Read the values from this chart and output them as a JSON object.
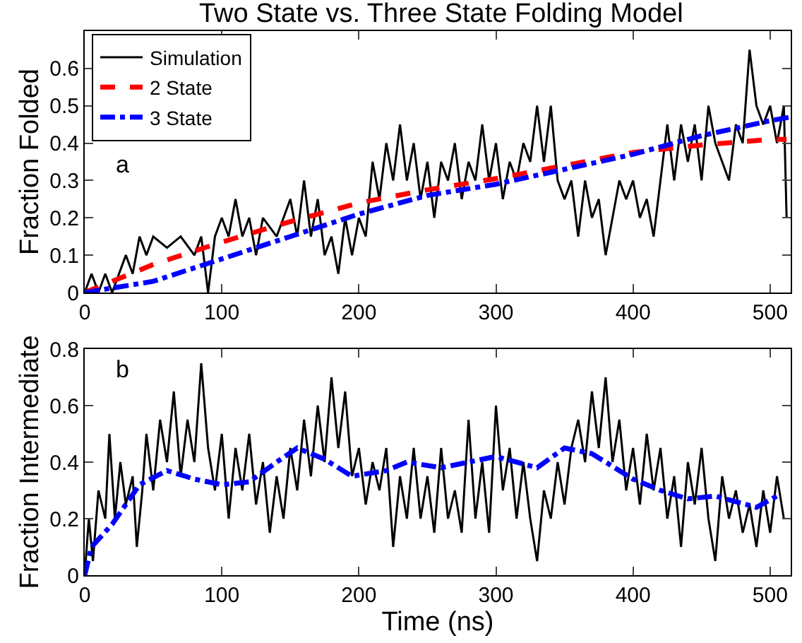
{
  "chart_data": [
    {
      "type": "line",
      "title": "Two State vs. Three State Folding Model",
      "ylabel": "Fraction Folded",
      "annotations": [
        "a"
      ],
      "legend": "top left",
      "grid": false,
      "xlim": [
        0,
        515
      ],
      "xticks": [
        0,
        100,
        200,
        300,
        400,
        500
      ],
      "ylim": [
        0,
        0.7
      ],
      "yticks": [
        0,
        0.1,
        0.2,
        0.3,
        0.4,
        0.5,
        0.6
      ],
      "series": [
        {
          "name": "Simulation",
          "color": "#000000",
          "line_style": "solid",
          "x": [
            0,
            5,
            10,
            15,
            20,
            25,
            30,
            35,
            40,
            45,
            50,
            60,
            70,
            80,
            85,
            90,
            95,
            100,
            105,
            110,
            115,
            120,
            125,
            130,
            140,
            150,
            155,
            160,
            165,
            170,
            175,
            180,
            185,
            190,
            195,
            200,
            205,
            210,
            215,
            220,
            225,
            230,
            235,
            240,
            245,
            250,
            255,
            260,
            265,
            270,
            275,
            280,
            285,
            290,
            295,
            300,
            305,
            310,
            315,
            320,
            325,
            330,
            335,
            340,
            345,
            350,
            355,
            360,
            365,
            370,
            375,
            380,
            385,
            390,
            395,
            400,
            405,
            410,
            415,
            420,
            425,
            430,
            435,
            440,
            445,
            450,
            455,
            460,
            465,
            470,
            475,
            480,
            485,
            490,
            495,
            500,
            505,
            510,
            512
          ],
          "values": [
            0,
            0.05,
            0,
            0.05,
            0,
            0.05,
            0.1,
            0.05,
            0.15,
            0.1,
            0.15,
            0.12,
            0.15,
            0.1,
            0.15,
            0,
            0.15,
            0.2,
            0.15,
            0.25,
            0.15,
            0.2,
            0.1,
            0.2,
            0.15,
            0.25,
            0.15,
            0.3,
            0.15,
            0.25,
            0.1,
            0.15,
            0.05,
            0.2,
            0.1,
            0.2,
            0.15,
            0.35,
            0.25,
            0.4,
            0.3,
            0.45,
            0.3,
            0.4,
            0.25,
            0.35,
            0.2,
            0.35,
            0.3,
            0.4,
            0.25,
            0.35,
            0.3,
            0.45,
            0.3,
            0.4,
            0.25,
            0.35,
            0.3,
            0.4,
            0.35,
            0.5,
            0.35,
            0.5,
            0.3,
            0.25,
            0.3,
            0.15,
            0.3,
            0.2,
            0.25,
            0.1,
            0.2,
            0.3,
            0.25,
            0.3,
            0.2,
            0.25,
            0.15,
            0.3,
            0.45,
            0.3,
            0.45,
            0.35,
            0.45,
            0.3,
            0.5,
            0.4,
            0.35,
            0.3,
            0.45,
            0.4,
            0.65,
            0.5,
            0.45,
            0.5,
            0.4,
            0.5,
            0.2
          ]
        },
        {
          "name": "2 State",
          "color": "#ff0000",
          "line_style": "dashed",
          "x": [
            0,
            50,
            100,
            150,
            200,
            250,
            300,
            350,
            400,
            450,
            500,
            512
          ],
          "values": [
            0,
            0.075,
            0.135,
            0.19,
            0.24,
            0.275,
            0.305,
            0.34,
            0.375,
            0.395,
            0.41,
            0.41
          ]
        },
        {
          "name": "3 State",
          "color": "#0000ff",
          "line_style": "dashdot",
          "x": [
            0,
            50,
            100,
            150,
            200,
            250,
            300,
            350,
            400,
            450,
            500,
            515
          ],
          "values": [
            0,
            0.03,
            0.09,
            0.15,
            0.21,
            0.26,
            0.29,
            0.33,
            0.37,
            0.42,
            0.46,
            0.47
          ]
        }
      ]
    },
    {
      "type": "line",
      "xlabel": "Time (ns)",
      "ylabel": "Fraction Intermediate",
      "annotations": [
        "b"
      ],
      "grid": false,
      "xlim": [
        0,
        515
      ],
      "xticks": [
        0,
        100,
        200,
        300,
        400,
        500
      ],
      "ylim": [
        0,
        0.8
      ],
      "yticks": [
        0,
        0.2,
        0.4,
        0.6,
        0.8
      ],
      "series": [
        {
          "color": "#000000",
          "line_style": "solid",
          "x": [
            0,
            3,
            6,
            10,
            15,
            18,
            22,
            26,
            30,
            35,
            38,
            42,
            45,
            50,
            55,
            60,
            65,
            70,
            75,
            80,
            85,
            90,
            95,
            100,
            105,
            110,
            115,
            120,
            125,
            130,
            135,
            140,
            145,
            150,
            155,
            160,
            165,
            170,
            175,
            180,
            185,
            190,
            195,
            200,
            205,
            210,
            215,
            220,
            225,
            230,
            235,
            240,
            245,
            250,
            255,
            260,
            265,
            270,
            275,
            280,
            285,
            290,
            295,
            300,
            305,
            310,
            315,
            320,
            325,
            330,
            335,
            340,
            345,
            350,
            355,
            360,
            365,
            370,
            375,
            380,
            385,
            390,
            395,
            400,
            405,
            410,
            415,
            420,
            425,
            430,
            435,
            440,
            445,
            450,
            455,
            460,
            465,
            470,
            475,
            480,
            485,
            490,
            495,
            500,
            505,
            510
          ],
          "values": [
            0,
            0.2,
            0.05,
            0.3,
            0.2,
            0.5,
            0.2,
            0.4,
            0.25,
            0.35,
            0.1,
            0.3,
            0.5,
            0.3,
            0.55,
            0.4,
            0.65,
            0.35,
            0.55,
            0.4,
            0.75,
            0.45,
            0.3,
            0.5,
            0.2,
            0.45,
            0.3,
            0.5,
            0.25,
            0.4,
            0.15,
            0.35,
            0.2,
            0.45,
            0.3,
            0.55,
            0.35,
            0.6,
            0.4,
            0.7,
            0.45,
            0.65,
            0.35,
            0.45,
            0.25,
            0.4,
            0.3,
            0.45,
            0.1,
            0.35,
            0.2,
            0.45,
            0.2,
            0.35,
            0.15,
            0.45,
            0.2,
            0.3,
            0.15,
            0.55,
            0.2,
            0.4,
            0.15,
            0.6,
            0.3,
            0.45,
            0.2,
            0.4,
            0.2,
            0.05,
            0.3,
            0.2,
            0.4,
            0.25,
            0.45,
            0.55,
            0.4,
            0.65,
            0.45,
            0.7,
            0.4,
            0.55,
            0.3,
            0.45,
            0.25,
            0.5,
            0.3,
            0.45,
            0.2,
            0.35,
            0.1,
            0.4,
            0.25,
            0.45,
            0.2,
            0.05,
            0.35,
            0.2,
            0.3,
            0.15,
            0.25,
            0.1,
            0.3,
            0.15,
            0.35,
            0.2
          ]
        },
        {
          "color": "#0000ff",
          "line_style": "dashdot",
          "x": [
            0,
            5,
            20,
            40,
            60,
            80,
            100,
            120,
            140,
            155,
            175,
            195,
            220,
            235,
            260,
            280,
            300,
            330,
            350,
            370,
            400,
            420,
            440,
            460,
            490,
            505
          ],
          "values": [
            0,
            0.1,
            0.18,
            0.32,
            0.37,
            0.34,
            0.32,
            0.33,
            0.4,
            0.45,
            0.41,
            0.35,
            0.37,
            0.4,
            0.38,
            0.4,
            0.42,
            0.38,
            0.45,
            0.43,
            0.34,
            0.3,
            0.27,
            0.28,
            0.24,
            0.28
          ]
        }
      ]
    }
  ]
}
